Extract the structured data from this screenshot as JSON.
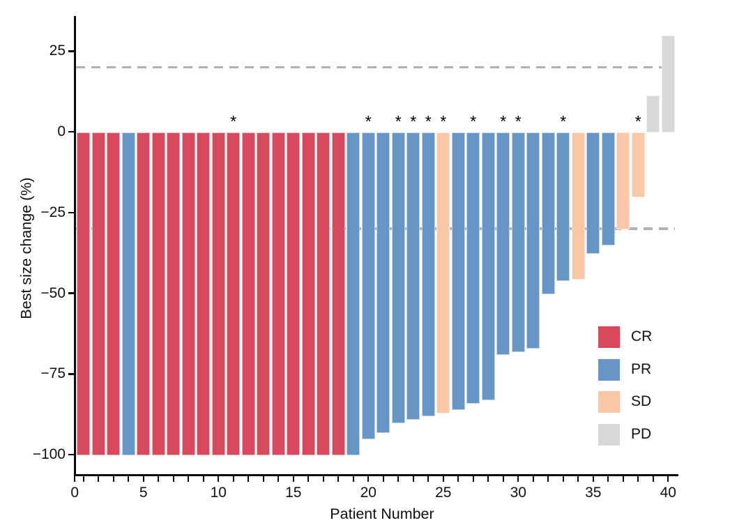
{
  "figure": {
    "background": "#ffffff"
  },
  "chart_data": {
    "type": "bar",
    "subtype": "waterfall",
    "title": "",
    "xlabel": "Patient Number",
    "ylabel": "Best size change (%)",
    "xlim": [
      0,
      40
    ],
    "ylim": [
      -106,
      36
    ],
    "grid": false,
    "legend_position": "right-middle",
    "annotation_glyph": "*",
    "annotation_meaning_visible": false,
    "y_ticks": [
      {
        "v": 25,
        "label": "25"
      },
      {
        "v": 0,
        "label": "0"
      },
      {
        "v": -25,
        "label": "−25"
      },
      {
        "v": -50,
        "label": "−50"
      },
      {
        "v": -75,
        "label": "−75"
      },
      {
        "v": -100,
        "label": "−100"
      }
    ],
    "x_tick_labels": [
      {
        "v": 0,
        "label": "0"
      },
      {
        "v": 5,
        "label": "5"
      },
      {
        "v": 10,
        "label": "10"
      },
      {
        "v": 15,
        "label": "15"
      },
      {
        "v": 20,
        "label": "20"
      },
      {
        "v": 25,
        "label": "25"
      },
      {
        "v": 30,
        "label": "30"
      },
      {
        "v": 35,
        "label": "35"
      },
      {
        "v": 40,
        "label": "40"
      }
    ],
    "x_minor_tick_every": 1,
    "reference_lines": [
      {
        "v": 20,
        "style": "dashed",
        "color": "#b0b0b0"
      },
      {
        "v": -30,
        "style": "dashed",
        "color": "#b0b0b0"
      }
    ],
    "colors": {
      "CR": "#d8495e",
      "PR": "#6795c6",
      "SD": "#f9c7a5",
      "PD": "#d8d8d8",
      "axis": "#0a0a0a",
      "dash": "#b0b0b0"
    },
    "legend": [
      {
        "key": "CR",
        "label": "CR"
      },
      {
        "key": "PR",
        "label": "PR"
      },
      {
        "key": "SD",
        "label": "SD"
      },
      {
        "key": "PD",
        "label": "PD"
      }
    ],
    "patients": [
      {
        "n": 1,
        "value": -100,
        "response": "CR",
        "star": false
      },
      {
        "n": 2,
        "value": -100,
        "response": "CR",
        "star": false
      },
      {
        "n": 3,
        "value": -100,
        "response": "CR",
        "star": false
      },
      {
        "n": 4,
        "value": -100,
        "response": "PR",
        "star": false
      },
      {
        "n": 5,
        "value": -100,
        "response": "CR",
        "star": false
      },
      {
        "n": 6,
        "value": -100,
        "response": "CR",
        "star": false
      },
      {
        "n": 7,
        "value": -100,
        "response": "CR",
        "star": false
      },
      {
        "n": 8,
        "value": -100,
        "response": "CR",
        "star": false
      },
      {
        "n": 9,
        "value": -100,
        "response": "CR",
        "star": false
      },
      {
        "n": 10,
        "value": -100,
        "response": "CR",
        "star": false
      },
      {
        "n": 11,
        "value": -100,
        "response": "CR",
        "star": true
      },
      {
        "n": 12,
        "value": -100,
        "response": "CR",
        "star": false
      },
      {
        "n": 13,
        "value": -100,
        "response": "CR",
        "star": false
      },
      {
        "n": 14,
        "value": -100,
        "response": "CR",
        "star": false
      },
      {
        "n": 15,
        "value": -100,
        "response": "CR",
        "star": false
      },
      {
        "n": 16,
        "value": -100,
        "response": "CR",
        "star": false
      },
      {
        "n": 17,
        "value": -100,
        "response": "CR",
        "star": false
      },
      {
        "n": 18,
        "value": -100,
        "response": "CR",
        "star": false
      },
      {
        "n": 19,
        "value": -100,
        "response": "PR",
        "star": false
      },
      {
        "n": 20,
        "value": -95,
        "response": "PR",
        "star": true
      },
      {
        "n": 21,
        "value": -93,
        "response": "PR",
        "star": false
      },
      {
        "n": 22,
        "value": -90,
        "response": "PR",
        "star": true
      },
      {
        "n": 23,
        "value": -89,
        "response": "PR",
        "star": true
      },
      {
        "n": 24,
        "value": -88,
        "response": "PR",
        "star": true
      },
      {
        "n": 25,
        "value": -87,
        "response": "SD",
        "star": true
      },
      {
        "n": 26,
        "value": -86,
        "response": "PR",
        "star": false
      },
      {
        "n": 27,
        "value": -84,
        "response": "PR",
        "star": true
      },
      {
        "n": 28,
        "value": -83,
        "response": "PR",
        "star": false
      },
      {
        "n": 29,
        "value": -69,
        "response": "PR",
        "star": true
      },
      {
        "n": 30,
        "value": -68,
        "response": "PR",
        "star": true
      },
      {
        "n": 31,
        "value": -67,
        "response": "PR",
        "star": false
      },
      {
        "n": 32,
        "value": -50,
        "response": "PR",
        "star": false
      },
      {
        "n": 33,
        "value": -46,
        "response": "PR",
        "star": true
      },
      {
        "n": 34,
        "value": -45.5,
        "response": "SD",
        "star": false
      },
      {
        "n": 35,
        "value": -37.5,
        "response": "PR",
        "star": false
      },
      {
        "n": 36,
        "value": -35,
        "response": "PR",
        "star": false
      },
      {
        "n": 37,
        "value": -30,
        "response": "SD",
        "star": false
      },
      {
        "n": 38,
        "value": -20,
        "response": "SD",
        "star": true
      },
      {
        "n": 39,
        "value": 11.5,
        "response": "PD",
        "star": false
      },
      {
        "n": 40,
        "value": 30,
        "response": "PD",
        "star": false
      }
    ]
  }
}
